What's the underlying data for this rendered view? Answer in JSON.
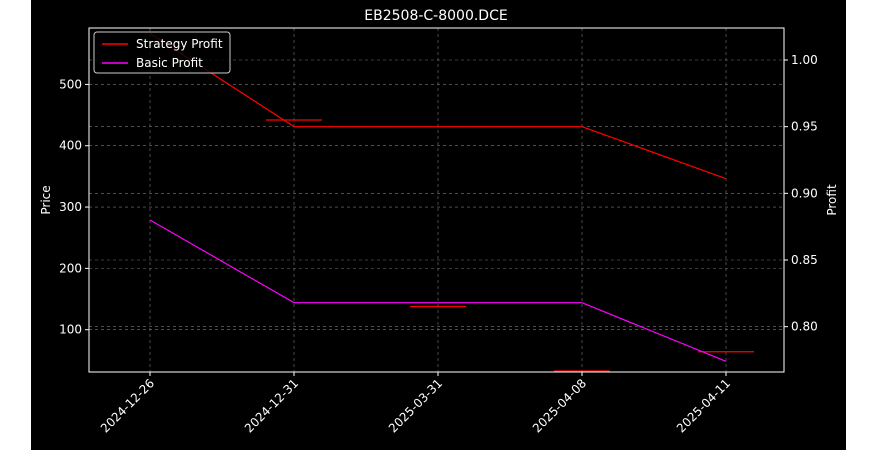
{
  "chart_data": {
    "type": "line",
    "title": "EB2508-C-8000.DCE",
    "xlabel": "",
    "ylabel": "Price",
    "ylabel_right": "Profit",
    "categories": [
      "2024-12-26",
      "2024-12-31",
      "2025-03-31",
      "2025-04-08",
      "2025-04-11"
    ],
    "series": [
      {
        "name": "Strategy Profit",
        "axis": "right",
        "color": "#ff0000",
        "values": [
          1.02,
          0.95,
          0.95,
          0.95,
          0.911
        ]
      },
      {
        "name": "Basic Profit",
        "axis": "right",
        "color": "#ff00ff",
        "values": [
          0.88,
          0.818,
          0.818,
          0.818,
          0.774
        ]
      }
    ],
    "price_marks": [
      {
        "date": "2024-12-31",
        "value": 442
      },
      {
        "date": "2025-03-31",
        "value": 138
      },
      {
        "date": "2025-04-08",
        "value": 31
      },
      {
        "date": "2025-04-11",
        "value": 64
      }
    ],
    "ylim": [
      31,
      592
    ],
    "ylim_right": [
      0.766,
      1.024
    ],
    "yticks": [
      100,
      200,
      300,
      400,
      500
    ],
    "yticks_right": [
      "0.80",
      "0.85",
      "0.90",
      "0.95",
      "1.00"
    ],
    "grid": true,
    "legend_position": "top-left",
    "background": "#000000",
    "foreground": "#ffffff"
  }
}
